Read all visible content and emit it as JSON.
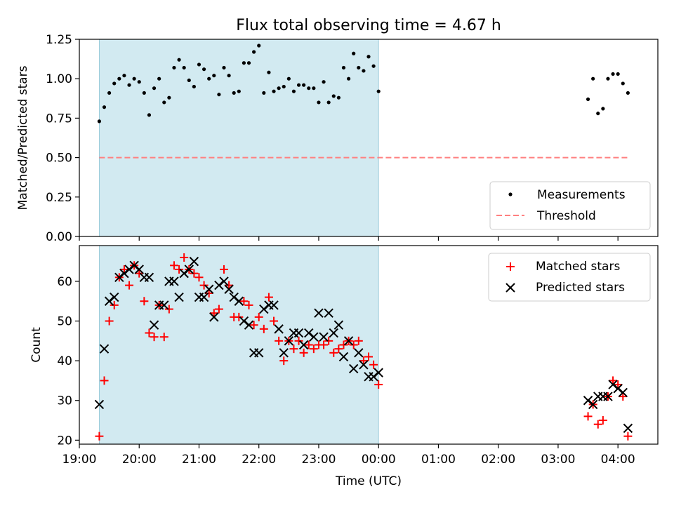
{
  "title": "Flux total observing time = 4.67 h",
  "chart_data": [
    {
      "type": "scatter",
      "ylabel": "Matched/Predicted stars",
      "ylim": [
        0,
        1.25
      ],
      "yticks": [
        "0.00",
        "0.25",
        "0.50",
        "0.75",
        "1.00",
        "1.25"
      ],
      "xlim": [
        "19:00",
        "04:40"
      ],
      "shaded_region": [
        "19:20",
        "24:00"
      ],
      "shaded_color": "#add8e6",
      "legend_position": "lower right",
      "series": [
        {
          "name": "Measurements",
          "style": "dot",
          "color": "#000000",
          "points": [
            [
              "19:20",
              0.73
            ],
            [
              "19:25",
              0.82
            ],
            [
              "19:30",
              0.91
            ],
            [
              "19:35",
              0.97
            ],
            [
              "19:40",
              1.0
            ],
            [
              "19:45",
              1.02
            ],
            [
              "19:50",
              0.96
            ],
            [
              "19:55",
              1.0
            ],
            [
              "20:00",
              0.98
            ],
            [
              "20:05",
              0.91
            ],
            [
              "20:10",
              0.77
            ],
            [
              "20:15",
              0.94
            ],
            [
              "20:20",
              1.0
            ],
            [
              "20:25",
              0.85
            ],
            [
              "20:30",
              0.88
            ],
            [
              "20:35",
              1.07
            ],
            [
              "20:40",
              1.12
            ],
            [
              "20:45",
              1.07
            ],
            [
              "20:50",
              0.99
            ],
            [
              "20:55",
              0.95
            ],
            [
              "21:00",
              1.09
            ],
            [
              "21:05",
              1.06
            ],
            [
              "21:10",
              1.0
            ],
            [
              "21:15",
              1.02
            ],
            [
              "21:20",
              0.9
            ],
            [
              "21:25",
              1.07
            ],
            [
              "21:30",
              1.02
            ],
            [
              "21:35",
              0.91
            ],
            [
              "21:40",
              0.92
            ],
            [
              "21:45",
              1.1
            ],
            [
              "21:50",
              1.1
            ],
            [
              "21:55",
              1.17
            ],
            [
              "22:00",
              1.21
            ],
            [
              "22:05",
              0.91
            ],
            [
              "22:10",
              1.04
            ],
            [
              "22:15",
              0.92
            ],
            [
              "22:20",
              0.94
            ],
            [
              "22:25",
              0.95
            ],
            [
              "22:30",
              1.0
            ],
            [
              "22:35",
              0.92
            ],
            [
              "22:40",
              0.96
            ],
            [
              "22:45",
              0.96
            ],
            [
              "22:50",
              0.94
            ],
            [
              "22:55",
              0.94
            ],
            [
              "23:00",
              0.85
            ],
            [
              "23:05",
              0.98
            ],
            [
              "23:10",
              0.85
            ],
            [
              "23:15",
              0.89
            ],
            [
              "23:20",
              0.88
            ],
            [
              "23:25",
              1.07
            ],
            [
              "23:30",
              1.0
            ],
            [
              "23:35",
              1.16
            ],
            [
              "23:40",
              1.07
            ],
            [
              "23:45",
              1.05
            ],
            [
              "23:50",
              1.14
            ],
            [
              "23:55",
              1.08
            ],
            [
              "24:00",
              0.92
            ],
            [
              "27:30",
              0.87
            ],
            [
              "27:35",
              1.0
            ],
            [
              "27:40",
              0.78
            ],
            [
              "27:45",
              0.81
            ],
            [
              "27:50",
              1.0
            ],
            [
              "27:55",
              1.03
            ],
            [
              "28:00",
              1.03
            ],
            [
              "28:05",
              0.97
            ],
            [
              "28:10",
              0.91
            ]
          ]
        },
        {
          "name": "Threshold",
          "style": "dashed",
          "color": "#ff8080",
          "points": [
            [
              "19:20",
              0.5
            ],
            [
              "28:10",
              0.5
            ]
          ]
        }
      ]
    },
    {
      "type": "scatter",
      "xlabel": "Time (UTC)",
      "ylabel": "Count",
      "ylim": [
        19,
        69
      ],
      "yticks": [
        "20",
        "30",
        "40",
        "50",
        "60"
      ],
      "xlim": [
        "19:00",
        "04:40"
      ],
      "xticks": [
        "19:00",
        "20:00",
        "21:00",
        "22:00",
        "23:00",
        "00:00",
        "01:00",
        "02:00",
        "03:00",
        "04:00"
      ],
      "shaded_region": [
        "19:20",
        "24:00"
      ],
      "shaded_color": "#add8e6",
      "legend_position": "upper right",
      "series": [
        {
          "name": "Matched stars",
          "marker": "plus",
          "color": "#ff0000",
          "points": [
            [
              "19:20",
              21
            ],
            [
              "19:25",
              35
            ],
            [
              "19:30",
              50
            ],
            [
              "19:35",
              54
            ],
            [
              "19:40",
              61
            ],
            [
              "19:45",
              63
            ],
            [
              "19:50",
              59
            ],
            [
              "19:55",
              64
            ],
            [
              "20:00",
              62
            ],
            [
              "20:05",
              55
            ],
            [
              "20:10",
              47
            ],
            [
              "20:15",
              46
            ],
            [
              "20:20",
              54
            ],
            [
              "20:25",
              46
            ],
            [
              "20:30",
              53
            ],
            [
              "20:35",
              64
            ],
            [
              "20:40",
              63
            ],
            [
              "20:45",
              66
            ],
            [
              "20:50",
              63
            ],
            [
              "20:55",
              62
            ],
            [
              "21:00",
              61
            ],
            [
              "21:05",
              59
            ],
            [
              "21:10",
              57
            ],
            [
              "21:15",
              52
            ],
            [
              "21:20",
              53
            ],
            [
              "21:25",
              63
            ],
            [
              "21:30",
              59
            ],
            [
              "21:35",
              51
            ],
            [
              "21:40",
              51
            ],
            [
              "21:45",
              55
            ],
            [
              "21:50",
              54
            ],
            [
              "21:55",
              49
            ],
            [
              "22:00",
              51
            ],
            [
              "22:05",
              48
            ],
            [
              "22:10",
              56
            ],
            [
              "22:15",
              50
            ],
            [
              "22:20",
              45
            ],
            [
              "22:25",
              40
            ],
            [
              "22:30",
              45
            ],
            [
              "22:35",
              43
            ],
            [
              "22:40",
              45
            ],
            [
              "22:45",
              42
            ],
            [
              "22:50",
              44
            ],
            [
              "22:55",
              43
            ],
            [
              "23:00",
              44
            ],
            [
              "23:05",
              44
            ],
            [
              "23:10",
              45
            ],
            [
              "23:15",
              42
            ],
            [
              "23:20",
              43
            ],
            [
              "23:25",
              44
            ],
            [
              "23:30",
              45
            ],
            [
              "23:35",
              44
            ],
            [
              "23:40",
              45
            ],
            [
              "23:45",
              40
            ],
            [
              "23:50",
              41
            ],
            [
              "23:55",
              39
            ],
            [
              "24:00",
              34
            ],
            [
              "27:30",
              26
            ],
            [
              "27:35",
              29
            ],
            [
              "27:40",
              24
            ],
            [
              "27:45",
              25
            ],
            [
              "27:50",
              31
            ],
            [
              "27:55",
              35
            ],
            [
              "28:00",
              34
            ],
            [
              "28:05",
              31
            ],
            [
              "28:10",
              21
            ]
          ]
        },
        {
          "name": "Predicted stars",
          "marker": "x",
          "color": "#000000",
          "points": [
            [
              "19:20",
              29
            ],
            [
              "19:25",
              43
            ],
            [
              "19:30",
              55
            ],
            [
              "19:35",
              56
            ],
            [
              "19:40",
              61
            ],
            [
              "19:45",
              62
            ],
            [
              "19:50",
              63
            ],
            [
              "19:55",
              64
            ],
            [
              "20:00",
              63
            ],
            [
              "20:05",
              61
            ],
            [
              "20:10",
              61
            ],
            [
              "20:15",
              49
            ],
            [
              "20:20",
              54
            ],
            [
              "20:25",
              54
            ],
            [
              "20:30",
              60
            ],
            [
              "20:35",
              60
            ],
            [
              "20:40",
              56
            ],
            [
              "20:45",
              62
            ],
            [
              "20:50",
              63
            ],
            [
              "20:55",
              65
            ],
            [
              "21:00",
              56
            ],
            [
              "21:05",
              56
            ],
            [
              "21:10",
              58
            ],
            [
              "21:15",
              51
            ],
            [
              "21:20",
              59
            ],
            [
              "21:25",
              60
            ],
            [
              "21:30",
              58
            ],
            [
              "21:35",
              56
            ],
            [
              "21:40",
              55
            ],
            [
              "21:45",
              50
            ],
            [
              "21:50",
              49
            ],
            [
              "21:55",
              42
            ],
            [
              "22:00",
              42
            ],
            [
              "22:05",
              53
            ],
            [
              "22:10",
              54
            ],
            [
              "22:15",
              54
            ],
            [
              "22:20",
              48
            ],
            [
              "22:25",
              42
            ],
            [
              "22:30",
              45
            ],
            [
              "22:35",
              47
            ],
            [
              "22:40",
              47
            ],
            [
              "22:45",
              44
            ],
            [
              "22:50",
              47
            ],
            [
              "22:55",
              46
            ],
            [
              "23:00",
              52
            ],
            [
              "23:05",
              46
            ],
            [
              "23:10",
              52
            ],
            [
              "23:15",
              47
            ],
            [
              "23:20",
              49
            ],
            [
              "23:25",
              41
            ],
            [
              "23:30",
              45
            ],
            [
              "23:35",
              38
            ],
            [
              "23:40",
              42
            ],
            [
              "23:45",
              39
            ],
            [
              "23:50",
              36
            ],
            [
              "23:55",
              36
            ],
            [
              "24:00",
              37
            ],
            [
              "27:30",
              30
            ],
            [
              "27:35",
              29
            ],
            [
              "27:40",
              31
            ],
            [
              "27:45",
              31
            ],
            [
              "27:50",
              31
            ],
            [
              "27:55",
              34
            ],
            [
              "28:00",
              33
            ],
            [
              "28:05",
              32
            ],
            [
              "28:10",
              23
            ]
          ]
        }
      ]
    }
  ]
}
